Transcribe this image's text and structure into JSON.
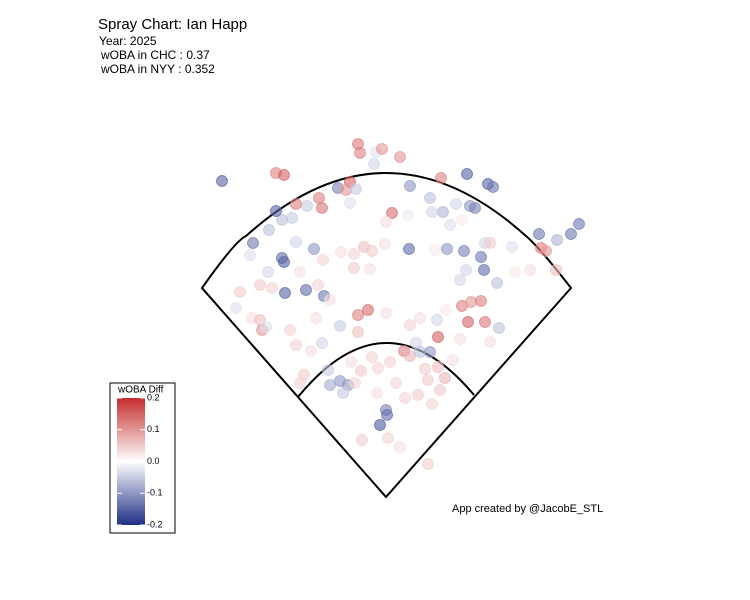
{
  "chart_data": {
    "type": "scatter",
    "title": "Spray Chart: Ian Happ",
    "subtitle": [
      "Year: 2025",
      "wOBA in CHC : 0.37",
      "wOBA in NYY : 0.352"
    ],
    "annotation": "App created by @JacobE_STL",
    "xlim": [
      -250,
      250
    ],
    "ylim": [
      0,
      400
    ],
    "x": [
      -164,
      -110,
      -102,
      -28,
      -26,
      -10,
      -4,
      14,
      -12,
      -36,
      -48,
      -40,
      -30,
      24,
      55,
      81,
      102,
      107,
      44,
      70,
      84,
      89,
      57,
      76,
      64,
      46,
      6,
      22,
      0,
      -36,
      -67,
      -64,
      -79,
      -90,
      -94,
      -104,
      -110,
      -90,
      -72,
      -133,
      -117,
      -136,
      -104,
      -102,
      -118,
      -63,
      -45,
      -32,
      -22,
      -14,
      -1,
      23,
      -16,
      -32,
      49,
      61,
      78,
      99,
      104,
      126,
      95,
      98,
      111,
      80,
      74,
      129,
      144,
      155,
      153,
      160,
      170,
      185,
      193,
      171,
      -146,
      -126,
      -114,
      -101,
      -80,
      -62,
      -86,
      -56,
      -68,
      -150,
      -134,
      -126,
      -124,
      -120,
      -96,
      -70,
      -46,
      -28,
      -18,
      0,
      -28,
      24,
      34,
      51,
      60,
      76,
      82,
      99,
      85,
      95,
      113,
      104,
      74,
      52,
      30,
      -90,
      -75,
      -64,
      -82,
      -86,
      -58,
      -56,
      -46,
      -38,
      -43,
      -31,
      -25,
      -8,
      4,
      18,
      24,
      34,
      44,
      39,
      52,
      59,
      42,
      32,
      19,
      10,
      -9,
      0,
      1,
      -6,
      2,
      -24,
      42,
      14,
      54,
      46,
      67,
      -14,
      -35
    ],
    "y": [
      316,
      324,
      322,
      353,
      344,
      345,
      348,
      340,
      333,
      315,
      309,
      307,
      308,
      311,
      319,
      323,
      313,
      310,
      299,
      293,
      291,
      289,
      285,
      277,
      272,
      285,
      284,
      282,
      275,
      294,
      299,
      289,
      291,
      293,
      279,
      277,
      286,
      255,
      248,
      254,
      267,
      242,
      239,
      235,
      225,
      237,
      245,
      243,
      250,
      246,
      253,
      248,
      228,
      229,
      247,
      248,
      246,
      254,
      254,
      250,
      240,
      227,
      214,
      227,
      217,
      225,
      227,
      249,
      263,
      246,
      227,
      263,
      273,
      257,
      205,
      212,
      209,
      204,
      207,
      201,
      225,
      197,
      212,
      189,
      179,
      177,
      167,
      170,
      167,
      179,
      171,
      182,
      187,
      184,
      165,
      172,
      179,
      177,
      187,
      191,
      175,
      175,
      195,
      196,
      169,
      155,
      158,
      160,
      154,
      152,
      146,
      154,
      122,
      114,
      127,
      112,
      116,
      112,
      104,
      114,
      126,
      129,
      135,
      146,
      141,
      145,
      145,
      128,
      130,
      119,
      117,
      102,
      99,
      114,
      104,
      87,
      82,
      72,
      59,
      57,
      33,
      50,
      107,
      93,
      137,
      140,
      135
    ],
    "z": [
      -0.15,
      0.12,
      0.15,
      0.13,
      0.12,
      -0.03,
      0.1,
      0.1,
      -0.04,
      0.15,
      -0.12,
      0.1,
      -0.05,
      -0.1,
      0.12,
      -0.15,
      -0.15,
      -0.13,
      -0.06,
      -0.04,
      -0.1,
      -0.12,
      -0.07,
      0.02,
      -0.03,
      -0.04,
      0.14,
      -0.02,
      0.03,
      -0.03,
      0.12,
      0.13,
      -0.05,
      0.12,
      -0.05,
      -0.06,
      -0.15,
      -0.04,
      -0.1,
      -0.13,
      -0.06,
      -0.03,
      -0.14,
      -0.15,
      -0.04,
      0.04,
      0.03,
      0.04,
      0.06,
      0.05,
      0.03,
      -0.14,
      0.03,
      0.05,
      0.02,
      -0.1,
      -0.12,
      -0.04,
      0.05,
      -0.03,
      -0.13,
      -0.14,
      -0.06,
      -0.04,
      -0.04,
      0.02,
      0.03,
      0.12,
      -0.13,
      0.1,
      0.06,
      -0.13,
      -0.13,
      -0.07,
      0.05,
      0.05,
      0.04,
      -0.15,
      -0.14,
      -0.13,
      0.03,
      0.03,
      0.04,
      -0.03,
      0.03,
      0.06,
      0.1,
      -0.03,
      0.04,
      0.03,
      -0.05,
      0.12,
      0.14,
      0.03,
      0.06,
      0.04,
      0.03,
      -0.04,
      0.02,
      0.12,
      0.15,
      0.13,
      0.1,
      0.12,
      -0.06,
      0.03,
      0.03,
      0.15,
      -0.04,
      0.04,
      0.03,
      -0.04,
      0.05,
      0.04,
      -0.05,
      -0.08,
      -0.1,
      -0.1,
      -0.05,
      0.04,
      0.05,
      0.04,
      0.04,
      0.12,
      0.07,
      -0.06,
      -0.1,
      0.05,
      0.06,
      0.07,
      0.05,
      0.05,
      0.04,
      0.04,
      0.03,
      -0.12,
      -0.14,
      -0.16,
      0.04,
      0.05,
      0.05,
      0.03,
      0.05,
      0.04,
      0.03,
      0.04,
      0.03
    ],
    "legend_title": "wOBA Diff",
    "zlim": [
      -0.2,
      0.2
    ],
    "zticks": [
      0.2,
      0.1,
      {
        "value": 0,
        "label": "0.0"
      },
      -0.1,
      -0.2
    ],
    "color_low": "#1f2f86",
    "color_mid": "#ffffff",
    "color_high": "#c62d2d"
  }
}
